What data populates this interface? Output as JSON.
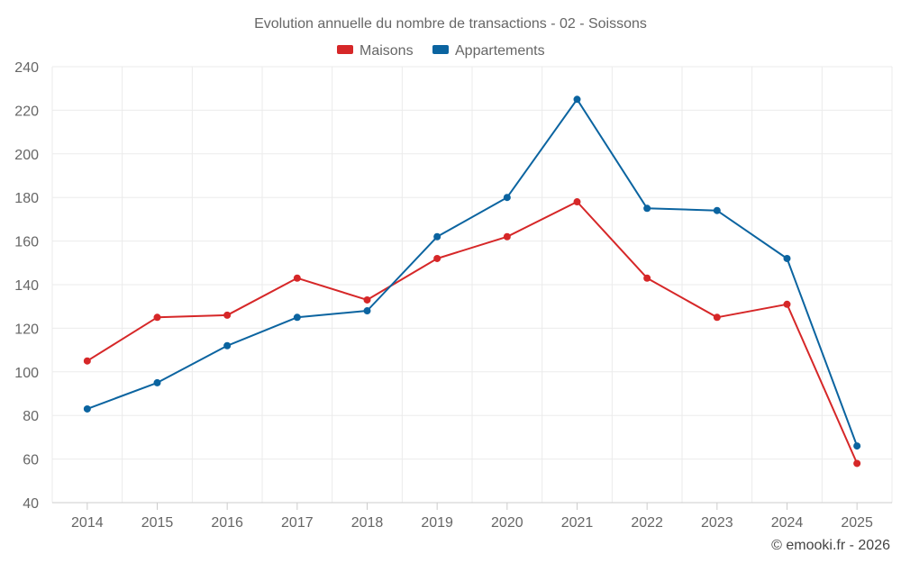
{
  "chart_data": {
    "type": "line",
    "title": "Evolution annuelle du nombre de transactions - 02 - Soissons",
    "categories": [
      "2014",
      "2015",
      "2016",
      "2017",
      "2018",
      "2019",
      "2020",
      "2021",
      "2022",
      "2023",
      "2024",
      "2025"
    ],
    "series": [
      {
        "name": "Maisons",
        "color": "#d62728",
        "values": [
          105,
          125,
          126,
          143,
          133,
          152,
          162,
          178,
          143,
          125,
          131,
          58
        ]
      },
      {
        "name": "Appartements",
        "color": "#0b64a0",
        "values": [
          83,
          95,
          112,
          125,
          128,
          162,
          180,
          225,
          175,
          174,
          152,
          66
        ]
      }
    ],
    "ylim": [
      40,
      240
    ],
    "yticks": [
      40,
      60,
      80,
      100,
      120,
      140,
      160,
      180,
      200,
      220,
      240
    ],
    "xlabel": "",
    "ylabel": "",
    "grid": true,
    "legend_position": "top-center"
  },
  "credit": "© emooki.fr - 2026"
}
